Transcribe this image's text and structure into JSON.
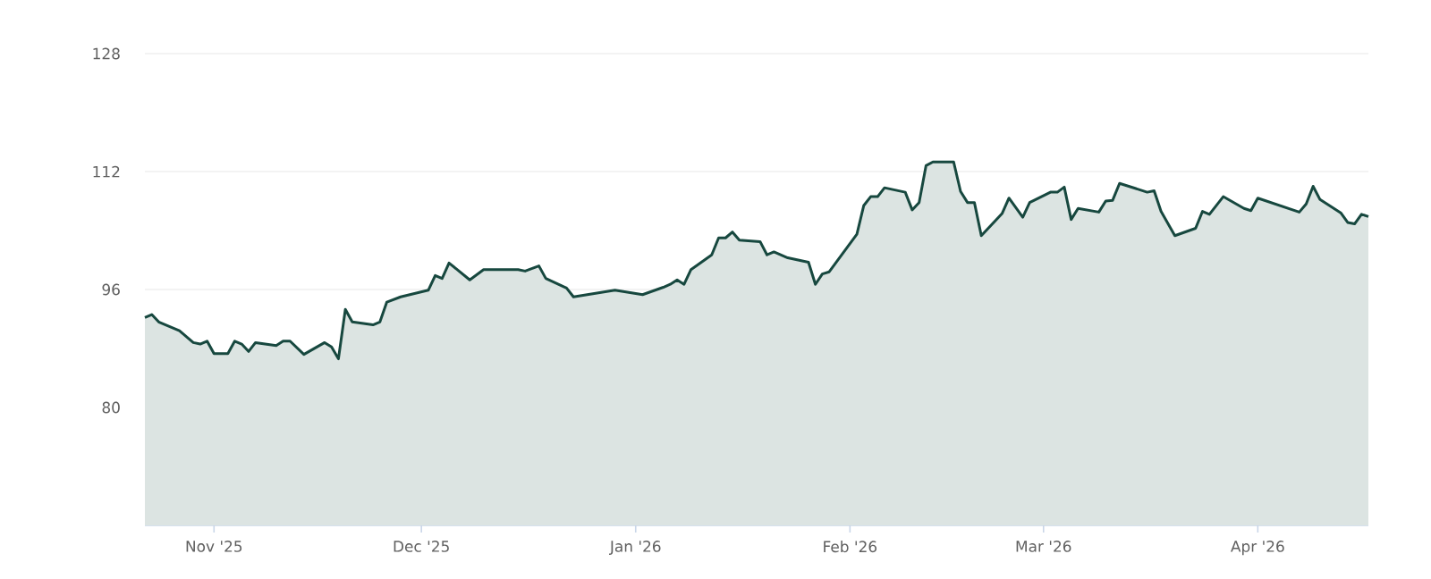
{
  "chart_data": {
    "type": "area",
    "color": "#17483f",
    "grid": "y",
    "ylim": [
      64,
      128
    ],
    "yticks": [
      80,
      96,
      112,
      128
    ],
    "xlim": [
      "2025-10-22",
      "2026-04-17"
    ],
    "xticks": [
      {
        "value": "2025-11-01",
        "label": "Nov '25"
      },
      {
        "value": "2025-12-01",
        "label": "Dec '25"
      },
      {
        "value": "2026-01-01",
        "label": "Jan '26"
      },
      {
        "value": "2026-02-01",
        "label": "Feb '26"
      },
      {
        "value": "2026-03-01",
        "label": "Mar '26"
      },
      {
        "value": "2026-04-01",
        "label": "Apr '26"
      }
    ],
    "x": [
      "2025-10-22",
      "2025-10-23",
      "2025-10-24",
      "2025-10-27",
      "2025-10-29",
      "2025-10-30",
      "2025-10-31",
      "2025-11-01",
      "2025-11-03",
      "2025-11-04",
      "2025-11-05",
      "2025-11-06",
      "2025-11-07",
      "2025-11-10",
      "2025-11-11",
      "2025-11-12",
      "2025-11-14",
      "2025-11-17",
      "2025-11-18",
      "2025-11-19",
      "2025-11-20",
      "2025-11-21",
      "2025-11-24",
      "2025-11-25",
      "2025-11-26",
      "2025-11-28",
      "2025-12-02",
      "2025-12-03",
      "2025-12-04",
      "2025-12-05",
      "2025-12-08",
      "2025-12-10",
      "2025-12-15",
      "2025-12-16",
      "2025-12-18",
      "2025-12-19",
      "2025-12-22",
      "2025-12-23",
      "2025-12-29",
      "2026-01-02",
      "2026-01-05",
      "2026-01-06",
      "2026-01-07",
      "2026-01-08",
      "2026-01-09",
      "2026-01-12",
      "2026-01-13",
      "2026-01-14",
      "2026-01-15",
      "2026-01-16",
      "2026-01-19",
      "2026-01-20",
      "2026-01-21",
      "2026-01-23",
      "2026-01-26",
      "2026-01-27",
      "2026-01-28",
      "2026-01-29",
      "2026-02-02",
      "2026-02-03",
      "2026-02-04",
      "2026-02-05",
      "2026-02-06",
      "2026-02-09",
      "2026-02-10",
      "2026-02-11",
      "2026-02-12",
      "2026-02-13",
      "2026-02-16",
      "2026-02-17",
      "2026-02-18",
      "2026-02-19",
      "2026-02-20",
      "2026-02-23",
      "2026-02-24",
      "2026-02-26",
      "2026-02-27",
      "2026-03-02",
      "2026-03-03",
      "2026-03-04",
      "2026-03-05",
      "2026-03-06",
      "2026-03-09",
      "2026-03-10",
      "2026-03-11",
      "2026-03-12",
      "2026-03-16",
      "2026-03-17",
      "2026-03-18",
      "2026-03-20",
      "2026-03-23",
      "2026-03-24",
      "2026-03-25",
      "2026-03-27",
      "2026-03-30",
      "2026-03-31",
      "2026-04-01",
      "2026-04-07",
      "2026-04-08",
      "2026-04-09",
      "2026-04-10",
      "2026-04-13",
      "2026-04-14",
      "2026-04-15",
      "2026-04-16",
      "2026-04-17"
    ],
    "values": [
      92.2,
      92.6,
      91.6,
      90.4,
      88.8,
      88.6,
      89.0,
      87.3,
      87.3,
      89.0,
      88.6,
      87.6,
      88.8,
      88.4,
      89.0,
      89.0,
      87.2,
      88.8,
      88.2,
      86.6,
      93.3,
      91.6,
      91.2,
      91.6,
      94.3,
      95.0,
      95.9,
      97.9,
      97.5,
      99.6,
      97.3,
      98.7,
      98.7,
      98.5,
      99.2,
      97.5,
      96.2,
      95.0,
      95.9,
      95.3,
      96.3,
      96.7,
      97.3,
      96.7,
      98.7,
      100.7,
      103.0,
      103.0,
      103.8,
      102.7,
      102.5,
      100.7,
      101.1,
      100.3,
      99.7,
      96.7,
      98.1,
      98.4,
      103.5,
      107.4,
      108.6,
      108.6,
      109.8,
      109.2,
      106.8,
      107.8,
      112.8,
      113.3,
      113.3,
      109.3,
      107.8,
      107.8,
      103.3,
      106.3,
      108.4,
      105.8,
      107.8,
      109.2,
      109.2,
      109.9,
      105.5,
      107.0,
      106.5,
      108.0,
      108.1,
      110.4,
      109.2,
      109.4,
      106.6,
      103.3,
      104.3,
      106.6,
      106.2,
      108.6,
      107.0,
      106.7,
      108.4,
      106.5,
      107.6,
      110.0,
      108.2,
      106.4,
      105.1,
      104.9,
      106.2,
      105.9
    ]
  }
}
